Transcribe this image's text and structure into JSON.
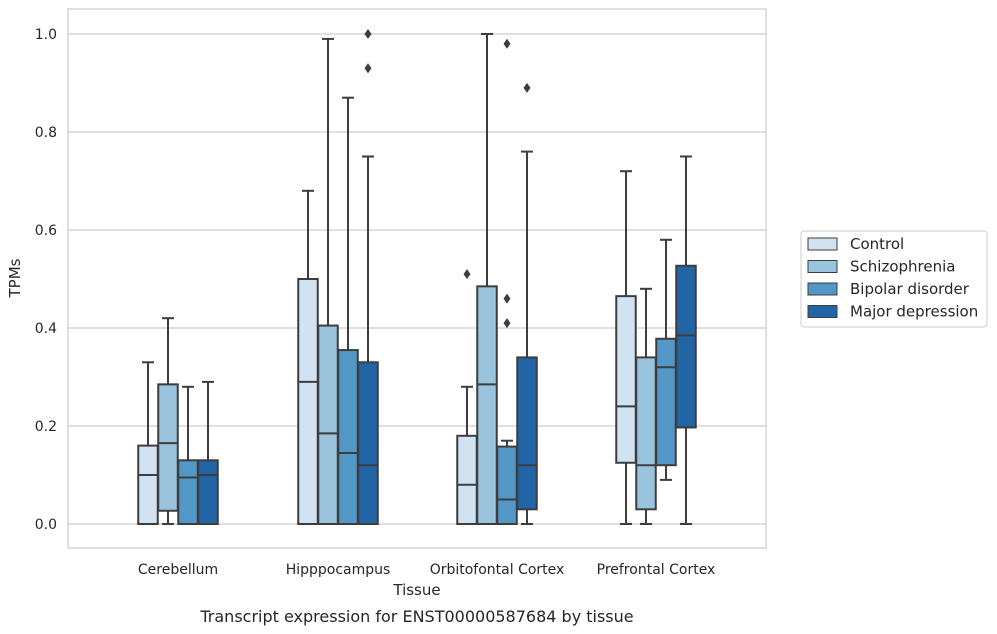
{
  "chart_data": {
    "type": "box",
    "title": "",
    "caption": "Transcript expression for ENST00000587684 by tissue",
    "xlabel": "Tissue",
    "ylabel": "TPMs",
    "ylim": [
      -0.05,
      1.05
    ],
    "yticks": [
      0.0,
      0.2,
      0.4,
      0.6,
      0.8,
      1.0
    ],
    "ytick_labels": [
      "0.0",
      "0.2",
      "0.4",
      "0.6",
      "0.8",
      "1.0"
    ],
    "grid": "horizontal",
    "legend_position": "right",
    "categories": [
      "Cerebellum",
      "Hipppocampus",
      "Orbitofontal Cortex",
      "Prefrontal Cortex"
    ],
    "series": [
      {
        "name": "Control",
        "color": "#d1e2f3",
        "boxes": [
          {
            "whisker_low": 0.0,
            "q1": 0.0,
            "median": 0.1,
            "q3": 0.16,
            "whisker_high": 0.33,
            "outliers": []
          },
          {
            "whisker_low": 0.0,
            "q1": 0.0,
            "median": 0.29,
            "q3": 0.5,
            "whisker_high": 0.68,
            "outliers": []
          },
          {
            "whisker_low": 0.0,
            "q1": 0.0,
            "median": 0.08,
            "q3": 0.18,
            "whisker_high": 0.28,
            "outliers": [
              0.51
            ]
          },
          {
            "whisker_low": 0.0,
            "q1": 0.125,
            "median": 0.24,
            "q3": 0.465,
            "whisker_high": 0.72,
            "outliers": []
          }
        ]
      },
      {
        "name": "Schizophrenia",
        "color": "#9ac4de",
        "boxes": [
          {
            "whisker_low": 0.0,
            "q1": 0.027,
            "median": 0.165,
            "q3": 0.285,
            "whisker_high": 0.42,
            "outliers": []
          },
          {
            "whisker_low": 0.0,
            "q1": 0.0,
            "median": 0.185,
            "q3": 0.405,
            "whisker_high": 0.99,
            "outliers": []
          },
          {
            "whisker_low": 0.0,
            "q1": 0.0,
            "median": 0.285,
            "q3": 0.485,
            "whisker_high": 1.0,
            "outliers": []
          },
          {
            "whisker_low": 0.0,
            "q1": 0.03,
            "median": 0.12,
            "q3": 0.34,
            "whisker_high": 0.48,
            "outliers": []
          }
        ]
      },
      {
        "name": "Bipolar disorder",
        "color": "#5297c6",
        "boxes": [
          {
            "whisker_low": 0.0,
            "q1": 0.0,
            "median": 0.095,
            "q3": 0.13,
            "whisker_high": 0.28,
            "outliers": []
          },
          {
            "whisker_low": 0.0,
            "q1": 0.0,
            "median": 0.145,
            "q3": 0.355,
            "whisker_high": 0.87,
            "outliers": []
          },
          {
            "whisker_low": 0.0,
            "q1": 0.0,
            "median": 0.05,
            "q3": 0.158,
            "whisker_high": 0.17,
            "outliers": [
              0.98,
              0.46,
              0.41
            ]
          },
          {
            "whisker_low": 0.09,
            "q1": 0.12,
            "median": 0.32,
            "q3": 0.378,
            "whisker_high": 0.58,
            "outliers": []
          }
        ]
      },
      {
        "name": "Major depression",
        "color": "#2265a6",
        "boxes": [
          {
            "whisker_low": 0.0,
            "q1": 0.0,
            "median": 0.1,
            "q3": 0.13,
            "whisker_high": 0.29,
            "outliers": []
          },
          {
            "whisker_low": 0.0,
            "q1": 0.0,
            "median": 0.12,
            "q3": 0.33,
            "whisker_high": 0.75,
            "outliers": [
              1.0,
              0.93
            ]
          },
          {
            "whisker_low": 0.0,
            "q1": 0.03,
            "median": 0.12,
            "q3": 0.34,
            "whisker_high": 0.76,
            "outliers": [
              0.89
            ]
          },
          {
            "whisker_low": 0.0,
            "q1": 0.197,
            "median": 0.385,
            "q3": 0.527,
            "whisker_high": 0.75,
            "outliers": []
          }
        ]
      }
    ]
  }
}
